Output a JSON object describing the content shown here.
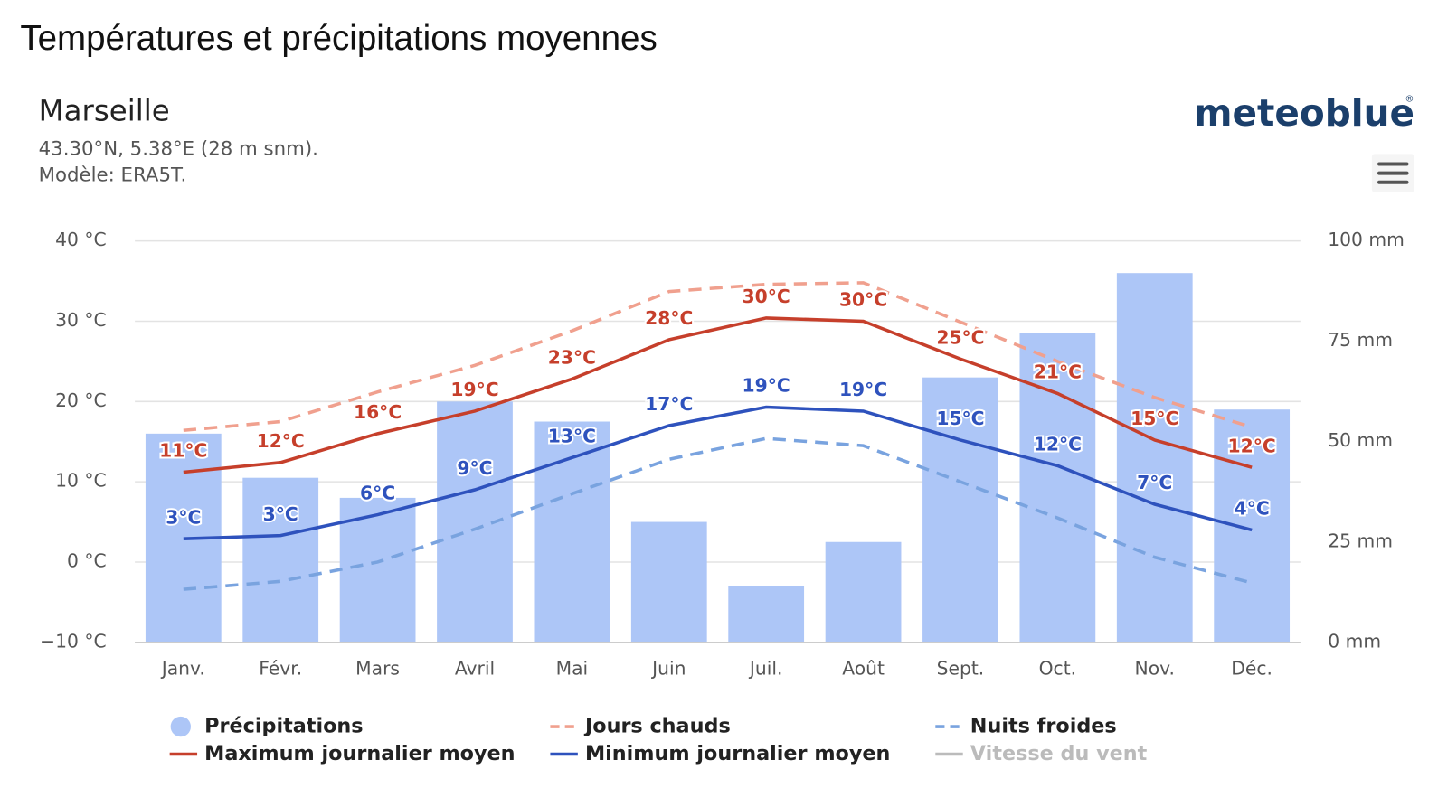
{
  "chart_data": {
    "type": "combo",
    "title": "Températures et précipitations moyennes",
    "subtitle": "Marseille",
    "location": "43.30°N, 5.38°E (28 m snm).",
    "model": "Modèle: ERA5T.",
    "brand": "meteoblue",
    "brand_mark": "®",
    "categories": [
      "Janv.",
      "Févr.",
      "Mars",
      "Avril",
      "Mai",
      "Juin",
      "Juil.",
      "Août",
      "Sept.",
      "Oct.",
      "Nov.",
      "Déc."
    ],
    "ylim": [
      -10,
      40
    ],
    "yticks": [
      {
        "value": -10,
        "label": "−10 °C"
      },
      {
        "value": 0,
        "label": "0 °C"
      },
      {
        "value": 10,
        "label": "10 °C"
      },
      {
        "value": 20,
        "label": "20 °C"
      },
      {
        "value": 30,
        "label": "30 °C"
      },
      {
        "value": 40,
        "label": "40 °C"
      }
    ],
    "y2lim": [
      0,
      100
    ],
    "y2ticks": [
      {
        "value": 0,
        "label": "0 mm"
      },
      {
        "value": 25,
        "label": "25 mm"
      },
      {
        "value": 50,
        "label": "50 mm"
      },
      {
        "value": 75,
        "label": "75 mm"
      },
      {
        "value": 100,
        "label": "100 mm"
      }
    ],
    "grid": true,
    "series": [
      {
        "name": "Précipitations",
        "type": "bar",
        "axis": "y2",
        "color": "#adc6f7",
        "values": [
          52,
          41,
          36,
          60,
          55,
          30,
          14,
          25,
          66,
          77,
          92,
          58
        ]
      },
      {
        "name": "Jours chauds",
        "type": "line",
        "dash": true,
        "color": "#f0a08e",
        "values": [
          16.4,
          17.5,
          21.2,
          24.5,
          28.8,
          33.7,
          34.6,
          34.8,
          29.9,
          25,
          20.5,
          16.8
        ]
      },
      {
        "name": "Nuits froides",
        "type": "line",
        "dash": true,
        "color": "#79a3df",
        "values": [
          -3.4,
          -2.4,
          0,
          4.1,
          8.5,
          12.8,
          15.4,
          14.5,
          10,
          5.5,
          0.6,
          -2.6
        ]
      },
      {
        "name": "Maximum journalier moyen",
        "type": "line",
        "color": "#c63f2b",
        "values": [
          11.2,
          12.4,
          16,
          18.8,
          22.8,
          27.7,
          30.4,
          30,
          25.3,
          21,
          15.2,
          11.8
        ],
        "value_labels": [
          "11°C",
          "12°C",
          "16°C",
          "19°C",
          "23°C",
          "28°C",
          "30°C",
          "30°C",
          "25°C",
          "21°C",
          "15°C",
          "12°C"
        ]
      },
      {
        "name": "Minimum journalier moyen",
        "type": "line",
        "color": "#2e52bd",
        "values": [
          2.9,
          3.3,
          5.9,
          9,
          13,
          17,
          19.3,
          18.8,
          15.2,
          12,
          7.2,
          4
        ],
        "value_labels": [
          "3°C",
          "3°C",
          "6°C",
          "9°C",
          "13°C",
          "17°C",
          "19°C",
          "19°C",
          "15°C",
          "12°C",
          "7°C",
          "4°C"
        ]
      },
      {
        "name": "Vitesse du vent",
        "type": "line",
        "visible": false,
        "color": "#bbbbbb"
      }
    ]
  }
}
